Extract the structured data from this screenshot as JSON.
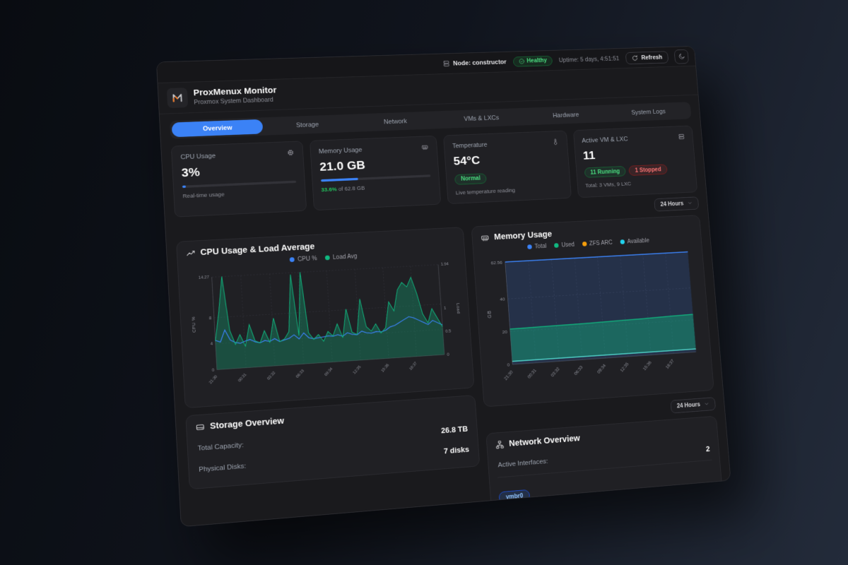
{
  "colors": {
    "accent": "#3b82f6",
    "green": "#22c55e",
    "emerald": "#10b981",
    "orange": "#f59e0b",
    "cyan": "#22d3ee",
    "red": "#ef4444",
    "panel_bg": "#1a1a1d",
    "card_bg": "#202024"
  },
  "topbar": {
    "node_label": "Node: constructor",
    "health_label": "Healthy",
    "uptime": "Uptime: 5 days, 4:51:51",
    "refresh_label": "Refresh"
  },
  "header": {
    "title": "ProxMenux Monitor",
    "subtitle": "Proxmox System Dashboard"
  },
  "tabs": [
    {
      "label": "Overview"
    },
    {
      "label": "Storage"
    },
    {
      "label": "Network"
    },
    {
      "label": "VMs & LXCs"
    },
    {
      "label": "Hardware"
    },
    {
      "label": "System Logs"
    }
  ],
  "stats": {
    "cpu": {
      "title": "CPU Usage",
      "value": "3%",
      "bar_style": "width:3%",
      "caption": "Real-time usage"
    },
    "memory": {
      "title": "Memory Usage",
      "value": "21.0 GB",
      "bar_style": "width:33.6%",
      "caption_percent": "33.6%",
      "caption_rest": " of 62.8 GB"
    },
    "temperature": {
      "title": "Temperature",
      "value": "54°C",
      "badge": "Normal",
      "caption": "Live temperature reading"
    },
    "vms": {
      "title": "Active VM & LXC",
      "value": "11",
      "running_badge": "11 Running",
      "stopped_badge": "1 Stopped",
      "caption": "Total: 3 VMs, 9 LXC"
    }
  },
  "time_range": {
    "label": "24 Hours"
  },
  "chart_data": [
    {
      "type": "line",
      "title": "CPU Usage & Load Average",
      "x_ticks": [
        "21:30",
        "00:31",
        "03:32",
        "06:33",
        "09:34",
        "12:35",
        "15:36",
        "18:37"
      ],
      "left_axis": {
        "label": "CPU %",
        "ticks": [
          0,
          4,
          8,
          14.27
        ],
        "max": 14.27
      },
      "right_axis": {
        "label": "Load",
        "ticks": [
          0,
          0.5,
          1,
          1.94
        ],
        "max": 1.94
      },
      "grid": true,
      "legend_position": "top-center",
      "series": [
        {
          "name": "CPU %",
          "color": "#3b82f6",
          "axis": "left",
          "area": false,
          "values": [
            4.5,
            4.2,
            6.0,
            4.4,
            4.0,
            3.8,
            4.1,
            4.3,
            3.9,
            3.7,
            4.0,
            3.8,
            4.2,
            3.7,
            3.9,
            4.1,
            4.6,
            3.9,
            4.8,
            4.0,
            3.8,
            3.9,
            4.0,
            4.1,
            4.0,
            4.2,
            3.9,
            4.4,
            4.1,
            4.0,
            4.5,
            4.2,
            4.1,
            4.3,
            4.2,
            4.4,
            4.9,
            5.1,
            5.5,
            5.9,
            6.3,
            6.1,
            5.7,
            5.3,
            4.9,
            5.5,
            5.1,
            4.7
          ]
        },
        {
          "name": "Load Avg",
          "color": "#10b981",
          "axis": "right",
          "area": true,
          "values": [
            0.6,
            1.2,
            1.94,
            0.8,
            0.5,
            0.7,
            0.45,
            0.9,
            0.55,
            0.5,
            0.75,
            0.5,
            1.0,
            0.5,
            0.55,
            0.7,
            1.9,
            0.6,
            1.94,
            0.65,
            0.5,
            0.6,
            0.45,
            0.65,
            0.55,
            0.8,
            0.5,
            1.1,
            0.6,
            0.55,
            1.3,
            0.7,
            0.6,
            0.75,
            0.55,
            0.65,
            1.2,
            1.0,
            1.45,
            1.6,
            1.5,
            1.7,
            1.35,
            0.9,
            0.7,
            1.0,
            0.8,
            0.6
          ]
        }
      ]
    },
    {
      "type": "area",
      "title": "Memory Usage",
      "ylabel": "GB",
      "x_ticks": [
        "21:30",
        "00:31",
        "03:32",
        "06:33",
        "09:34",
        "12:35",
        "15:36",
        "18:37"
      ],
      "y_ticks": [
        0,
        20,
        40,
        62.56
      ],
      "max": 62.56,
      "grid": true,
      "legend_position": "top-center",
      "series": [
        {
          "name": "Total",
          "color": "#3b82f6",
          "values": [
            62.56,
            62.56,
            62.56,
            62.56,
            62.56,
            62.56,
            62.56,
            62.56
          ]
        },
        {
          "name": "Used",
          "color": "#10b981",
          "values": [
            21.5,
            21.7,
            21.9,
            22.1,
            22.4,
            22.7,
            23.1,
            23.5
          ]
        },
        {
          "name": "ZFS ARC",
          "color": "#f59e0b",
          "values": [
            1.9,
            1.9,
            1.9,
            1.9,
            1.9,
            1.9,
            1.9,
            1.9
          ]
        },
        {
          "name": "Available",
          "color": "#22d3ee",
          "values": [
            1.9,
            1.9,
            1.9,
            1.9,
            1.9,
            1.9,
            1.9,
            1.9
          ]
        }
      ]
    }
  ],
  "storage": {
    "title": "Storage Overview",
    "rows": [
      {
        "label": "Total Capacity:",
        "value": "26.8 TB"
      },
      {
        "label": "Physical Disks:",
        "value": "7 disks"
      }
    ]
  },
  "network": {
    "title": "Network Overview",
    "rows": [
      {
        "label": "Active Interfaces:",
        "value": "2"
      }
    ],
    "badges": [
      {
        "label": "vmbr0"
      }
    ]
  }
}
